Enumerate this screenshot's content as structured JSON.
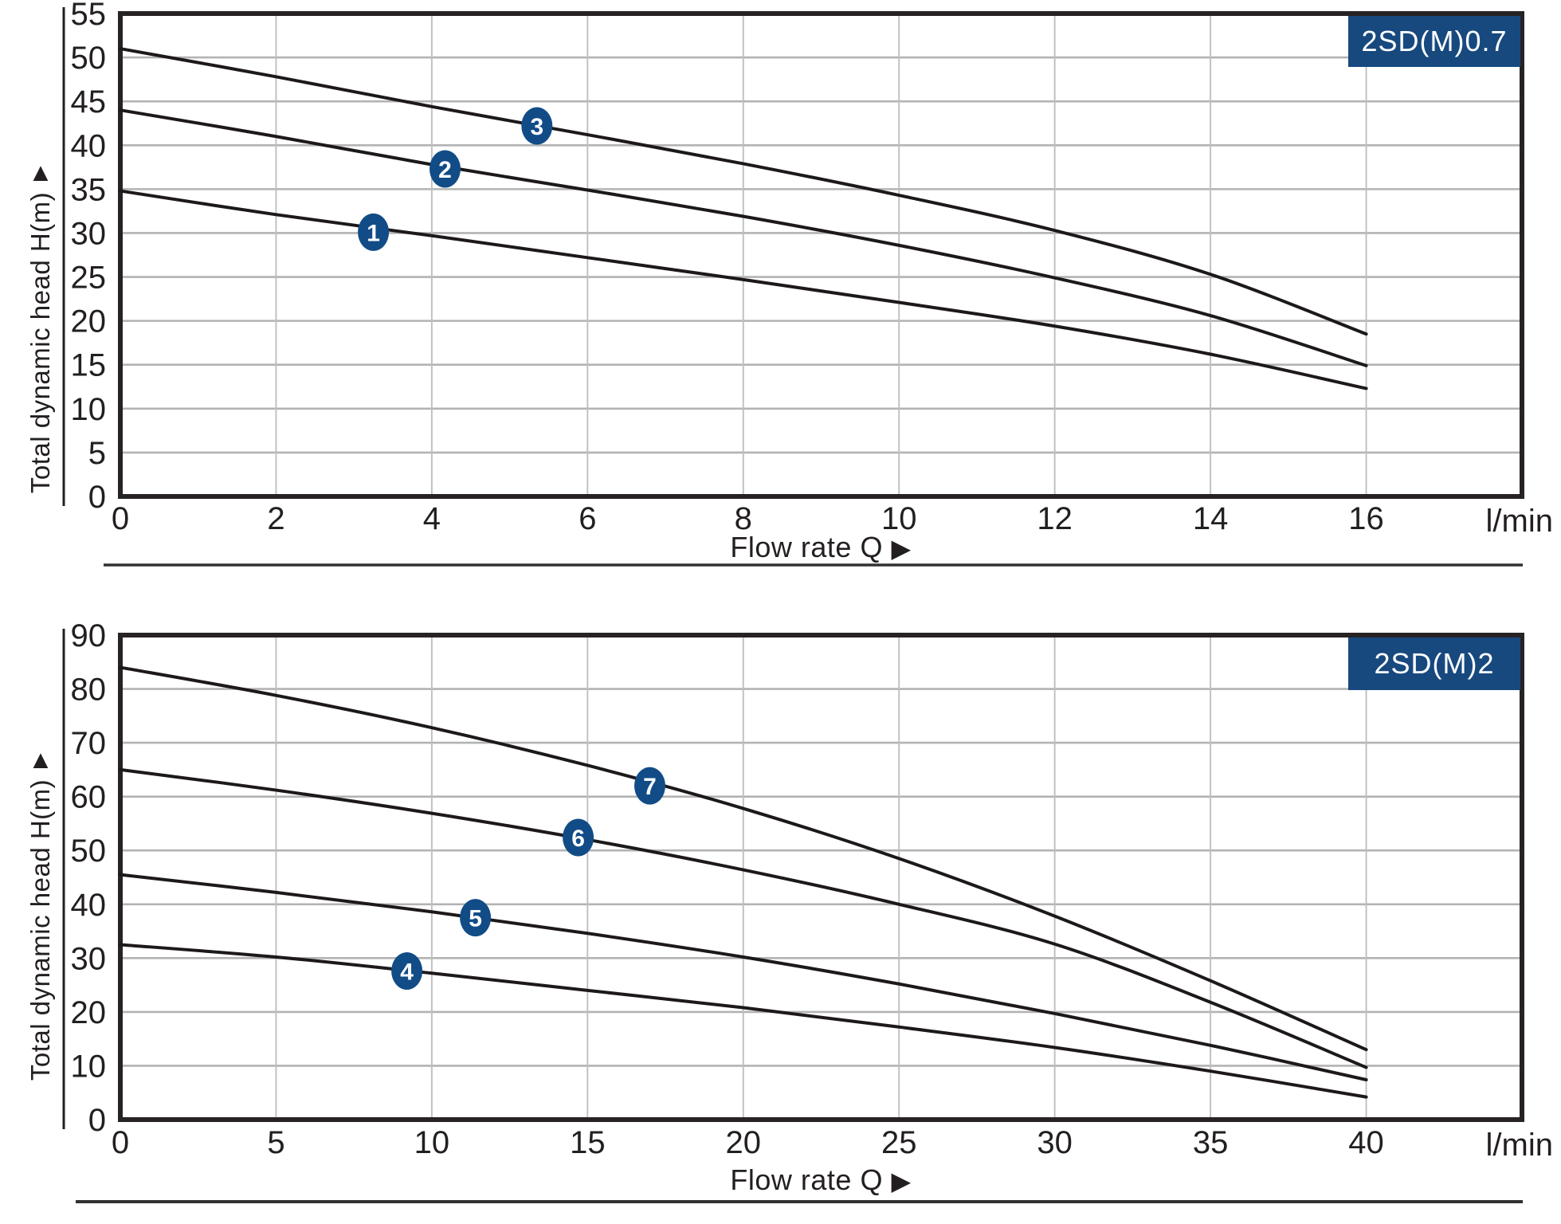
{
  "colors": {
    "curve": "#1d191a",
    "grid_h": "#b3b3b3",
    "grid_v": "#bfbfbf",
    "border": "#272223",
    "axis_line": "#231f20",
    "separator": "#323031",
    "badge_bg": "#17497f",
    "badge_text": "#ffffff",
    "marker_bg": "#124c87",
    "marker_text": "#ffffff",
    "text": "#231f20"
  },
  "chart_data": [
    {
      "type": "line",
      "title": "2SD(M)0.7",
      "xlabel": "Flow rate Q",
      "xlabel_arrow": "▶",
      "ylabel": "Total dynamic head H(m)",
      "ylabel_arrow": "▲",
      "x_unit": "l/min",
      "xlim": [
        0,
        18
      ],
      "ylim": [
        0,
        55
      ],
      "x_ticks": [
        0,
        2,
        4,
        6,
        8,
        10,
        12,
        14,
        16
      ],
      "y_ticks": [
        0,
        5,
        10,
        15,
        20,
        25,
        30,
        35,
        40,
        45,
        50,
        55
      ],
      "grid": true,
      "legend": "none",
      "series": [
        {
          "name": "1",
          "points": [
            [
              0,
              34.8
            ],
            [
              2,
              32.1
            ],
            [
              4,
              29.7
            ],
            [
              6,
              27.2
            ],
            [
              8,
              24.7
            ],
            [
              10,
              22.1
            ],
            [
              12,
              19.4
            ],
            [
              14,
              16.2
            ],
            [
              16,
              12.3
            ]
          ],
          "marker_at": [
            3.25,
            30.1
          ]
        },
        {
          "name": "2",
          "points": [
            [
              0,
              44
            ],
            [
              2,
              41
            ],
            [
              4,
              37.8
            ],
            [
              6,
              34.9
            ],
            [
              8,
              31.9
            ],
            [
              10,
              28.6
            ],
            [
              12,
              24.9
            ],
            [
              14,
              20.6
            ],
            [
              16,
              14.9
            ]
          ],
          "marker_at": [
            4.17,
            37.3
          ]
        },
        {
          "name": "3",
          "points": [
            [
              0,
              51
            ],
            [
              2,
              47.8
            ],
            [
              4,
              44.4
            ],
            [
              6,
              41.2
            ],
            [
              8,
              37.9
            ],
            [
              10,
              34.3
            ],
            [
              12,
              30.3
            ],
            [
              14,
              25.3
            ],
            [
              16,
              18.5
            ]
          ],
          "marker_at": [
            5.35,
            42.2
          ]
        }
      ]
    },
    {
      "type": "line",
      "title": "2SD(M)2",
      "xlabel": "Flow rate Q",
      "xlabel_arrow": "▶",
      "ylabel": "Total dynamic head H(m)",
      "ylabel_arrow": "▲",
      "x_unit": "l/min",
      "xlim": [
        0,
        45
      ],
      "ylim": [
        0,
        90
      ],
      "x_ticks": [
        0,
        5,
        10,
        15,
        20,
        25,
        30,
        35,
        40
      ],
      "y_ticks": [
        0,
        10,
        20,
        30,
        40,
        50,
        60,
        70,
        80,
        90
      ],
      "grid": true,
      "legend": "none",
      "series": [
        {
          "name": "4",
          "points": [
            [
              0,
              32.5
            ],
            [
              5,
              30.2
            ],
            [
              10,
              27.2
            ],
            [
              15,
              24
            ],
            [
              20,
              20.8
            ],
            [
              25,
              17.2
            ],
            [
              30,
              13.4
            ],
            [
              35,
              9
            ],
            [
              40,
              4.2
            ]
          ],
          "marker_at": [
            9.2,
            27.6
          ]
        },
        {
          "name": "5",
          "points": [
            [
              0,
              45.5
            ],
            [
              5,
              42.2
            ],
            [
              10,
              38.6
            ],
            [
              15,
              34.6
            ],
            [
              20,
              30.2
            ],
            [
              25,
              25.2
            ],
            [
              30,
              19.7
            ],
            [
              35,
              13.8
            ],
            [
              40,
              7.4
            ]
          ],
          "marker_at": [
            11.4,
            37.5
          ]
        },
        {
          "name": "6",
          "points": [
            [
              0,
              65
            ],
            [
              5,
              61.2
            ],
            [
              10,
              56.9
            ],
            [
              15,
              52
            ],
            [
              20,
              46.4
            ],
            [
              25,
              40
            ],
            [
              30,
              32.6
            ],
            [
              35,
              21.8
            ],
            [
              40,
              9.7
            ]
          ],
          "marker_at": [
            14.7,
            52.4
          ]
        },
        {
          "name": "7",
          "points": [
            [
              0,
              84
            ],
            [
              5,
              78.8
            ],
            [
              10,
              72.8
            ],
            [
              15,
              65.8
            ],
            [
              20,
              57.8
            ],
            [
              25,
              48.5
            ],
            [
              30,
              37.8
            ],
            [
              35,
              25.8
            ],
            [
              40,
              13
            ]
          ],
          "marker_at": [
            17.0,
            62
          ]
        }
      ]
    }
  ]
}
